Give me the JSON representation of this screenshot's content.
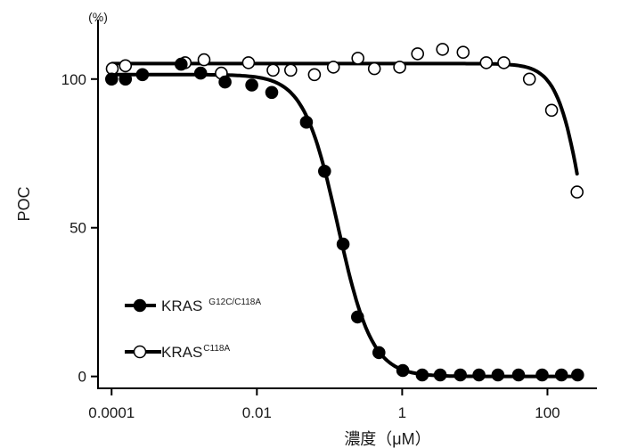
{
  "chart_data": {
    "type": "scatter",
    "ylabel": "POC",
    "yunit": "(%)",
    "xlabel": "濃度（μM）",
    "xscale": "log",
    "xlim": [
      6.5e-05,
      480
    ],
    "ylim": [
      -4,
      120
    ],
    "xticks": [
      {
        "value": 0.0001,
        "label": "0.0001"
      },
      {
        "value": 0.01,
        "label": "0.01"
      },
      {
        "value": 1,
        "label": "1"
      },
      {
        "value": 100,
        "label": "100"
      }
    ],
    "yticks": [
      {
        "value": 0,
        "label": "0"
      },
      {
        "value": 50,
        "label": "50"
      },
      {
        "value": 100,
        "label": "100"
      }
    ],
    "grid": false,
    "legend_position": "bottom-left",
    "series": [
      {
        "name": "KRAS",
        "name_sup": "C118A",
        "marker": "open-circle",
        "color": "#000000",
        "points": [
          {
            "x": 0.000102,
            "y": 103.5
          },
          {
            "x": 0.000155,
            "y": 104.5
          },
          {
            "x": 0.00103,
            "y": 105.5
          },
          {
            "x": 0.00187,
            "y": 106.5
          },
          {
            "x": 0.00324,
            "y": 102.0
          },
          {
            "x": 0.00767,
            "y": 105.5
          },
          {
            "x": 0.0167,
            "y": 103.0
          },
          {
            "x": 0.0292,
            "y": 103.0
          },
          {
            "x": 0.0619,
            "y": 101.5
          },
          {
            "x": 0.113,
            "y": 104.0
          },
          {
            "x": 0.246,
            "y": 107.0
          },
          {
            "x": 0.414,
            "y": 103.5
          },
          {
            "x": 0.924,
            "y": 104.0
          },
          {
            "x": 1.63,
            "y": 108.5
          },
          {
            "x": 3.6,
            "y": 110.0
          },
          {
            "x": 6.9,
            "y": 109.0
          },
          {
            "x": 14.4,
            "y": 105.5
          },
          {
            "x": 25.1,
            "y": 105.5
          },
          {
            "x": 56.4,
            "y": 100.0
          },
          {
            "x": 114,
            "y": 89.5
          },
          {
            "x": 256,
            "y": 62.0
          }
        ],
        "fit": {
          "top": 105.2,
          "ic50": 330,
          "hill": 2.4
        }
      },
      {
        "name": "KRAS",
        "name_sup": "G12C/C118A",
        "marker": "filled-circle",
        "color": "#000000",
        "points": [
          {
            "x": 0.0001,
            "y": 100.0
          },
          {
            "x": 0.000155,
            "y": 100.0
          },
          {
            "x": 0.000266,
            "y": 101.5
          },
          {
            "x": 0.000907,
            "y": 105.0
          },
          {
            "x": 0.00168,
            "y": 102.0
          },
          {
            "x": 0.00365,
            "y": 99.0
          },
          {
            "x": 0.0085,
            "y": 98.0
          },
          {
            "x": 0.016,
            "y": 95.5
          },
          {
            "x": 0.0481,
            "y": 85.5
          },
          {
            "x": 0.0855,
            "y": 69.0
          },
          {
            "x": 0.154,
            "y": 44.5
          },
          {
            "x": 0.243,
            "y": 20.0
          },
          {
            "x": 0.479,
            "y": 8.0
          },
          {
            "x": 1.02,
            "y": 2.0
          },
          {
            "x": 1.89,
            "y": 0.5
          },
          {
            "x": 3.34,
            "y": 0.5
          },
          {
            "x": 6.33,
            "y": 0.5
          },
          {
            "x": 11.4,
            "y": 0.5
          },
          {
            "x": 20.8,
            "y": 0.5
          },
          {
            "x": 40.0,
            "y": 0.5
          },
          {
            "x": 84.6,
            "y": 0.5
          },
          {
            "x": 156,
            "y": 0.5
          },
          {
            "x": 260,
            "y": 0.5
          }
        ],
        "fit": {
          "top": 101.5,
          "ic50": 0.13,
          "hill": 1.85
        }
      }
    ]
  }
}
